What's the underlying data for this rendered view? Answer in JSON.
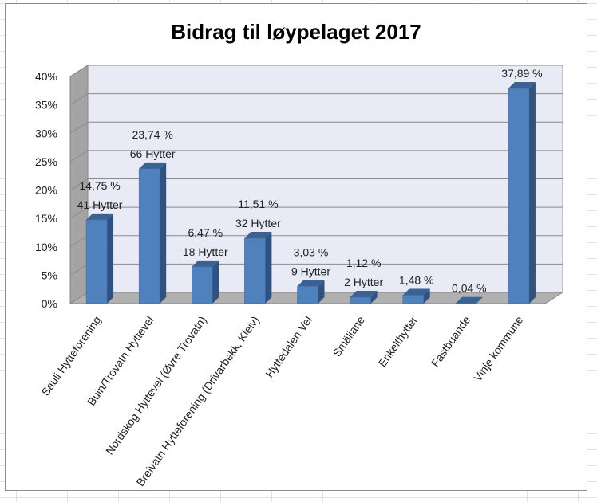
{
  "chart_data": {
    "type": "bar",
    "title": "Bidrag til løypelaget 2017",
    "xlabel": "",
    "ylabel": "",
    "ylim": [
      0,
      40
    ],
    "yticks": [
      "0%",
      "5%",
      "10%",
      "15%",
      "20%",
      "25%",
      "30%",
      "35%",
      "40%"
    ],
    "grid": true,
    "legend": false,
    "bar_color": "#4f81bd",
    "categories": [
      "Sauli Hytteforening",
      "Buin/Trovatn Hyttevel",
      "Nordskog Hyttevel (Øvre Trovatn)",
      "Breivatn Hytteforening (Drivarbekk, Kleiv)",
      "Hyttedalen Vel",
      "Smäliane",
      "Enkelthytter",
      "Fastbuande",
      "Vinje kommune"
    ],
    "values": [
      14.75,
      23.74,
      6.47,
      11.51,
      3.03,
      1.12,
      1.48,
      0.04,
      37.89
    ],
    "value_labels": [
      "14,75 %",
      "23,74 %",
      "6,47 %",
      "11,51 %",
      "3,03 %",
      "1,12 %",
      "1,48 %",
      "0,04 %",
      "37,89 %"
    ],
    "hytter_labels": [
      "41 Hytter",
      "66 Hytter",
      "18 Hytter",
      "32 Hytter",
      "9 Hytter",
      "2 Hytter",
      "",
      "",
      ""
    ]
  }
}
